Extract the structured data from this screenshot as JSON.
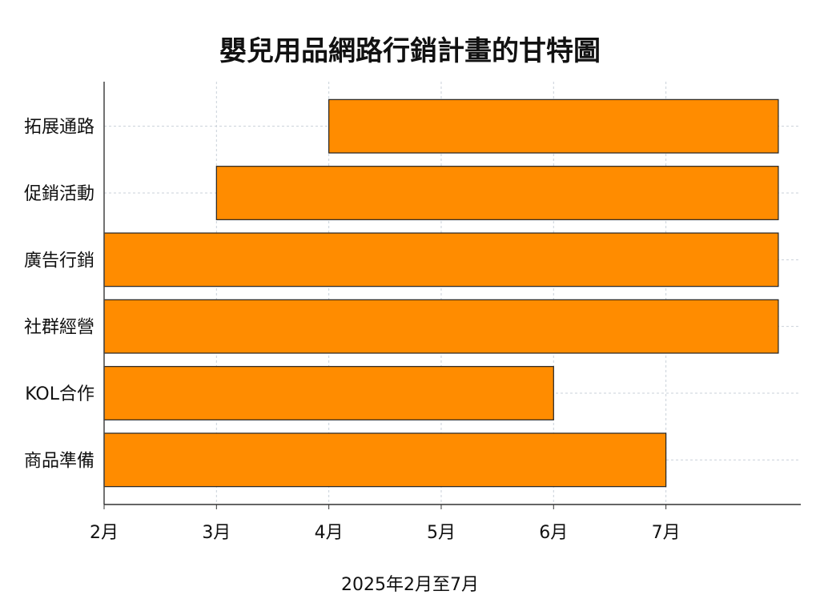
{
  "chart_data": {
    "type": "bar",
    "subtype": "gantt",
    "title": "嬰兒用品網路行銷計畫的甘特圖",
    "xlabel": "2025年2月至7月",
    "ylabel": "",
    "x_ticks": [
      "2月",
      "3月",
      "4月",
      "5月",
      "6月",
      "7月"
    ],
    "x_tick_values": [
      2,
      3,
      4,
      5,
      6,
      7
    ],
    "xlim": [
      2,
      8.2
    ],
    "grid": true,
    "bar_color": "#FF8C00",
    "tasks": [
      {
        "name": "拓展通路",
        "start": 4,
        "end": 8
      },
      {
        "name": "促銷活動",
        "start": 3,
        "end": 8
      },
      {
        "name": "廣告行銷",
        "start": 2,
        "end": 8
      },
      {
        "name": "社群經營",
        "start": 2,
        "end": 8
      },
      {
        "name": "KOL合作",
        "start": 2,
        "end": 6
      },
      {
        "name": "商品準備",
        "start": 2,
        "end": 7
      }
    ]
  }
}
